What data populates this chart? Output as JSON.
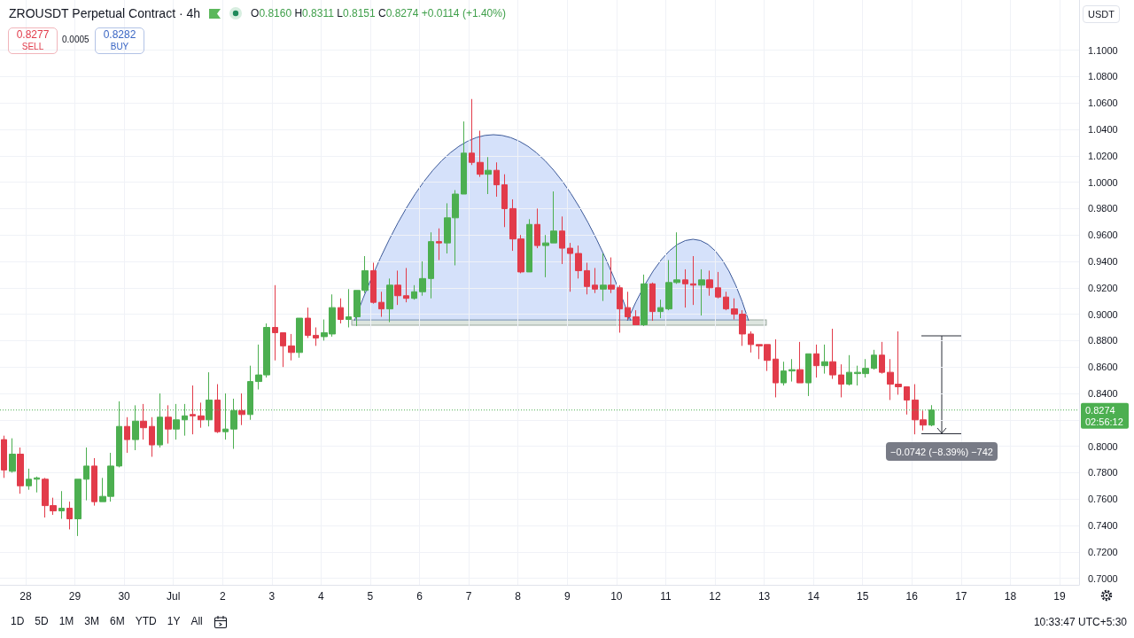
{
  "chart_data": {
    "type": "candlestick",
    "title": "ZROUSDT Perpetual Contract · 4h",
    "ylabel": "USDT",
    "x": [
      "--06-27T13:30",
      "--06-27T17:30",
      "--06-27T21:30",
      "--06-28T01:30",
      "--06-28T05:30",
      "--06-28T09:30",
      "--06-28T13:30",
      "--06-28T17:30",
      "--06-28T21:30",
      "--06-29T01:30",
      "--06-29T05:30",
      "--06-29T09:30",
      "--06-29T13:30",
      "--06-29T17:30",
      "--06-29T21:30",
      "--06-30T01:30",
      "--06-30T05:30",
      "--06-30T09:30",
      "--06-30T13:30",
      "--06-30T17:30",
      "--06-30T21:30",
      "--07-01T01:30",
      "--07-01T05:30",
      "--07-01T09:30",
      "--07-01T13:30",
      "--07-01T17:30",
      "--07-01T21:30",
      "--07-02T01:30",
      "--07-02T05:30",
      "--07-02T09:30",
      "--07-02T13:30",
      "--07-02T17:30",
      "--07-02T21:30",
      "--07-03T01:30",
      "--07-03T05:30",
      "--07-03T09:30",
      "--07-03T13:30",
      "--07-03T17:30",
      "--07-03T21:30",
      "--07-04T01:30",
      "--07-04T05:30",
      "--07-04T09:30",
      "--07-04T13:30",
      "--07-04T17:30",
      "--07-04T21:30",
      "--07-05T01:30",
      "--07-05T05:30",
      "--07-05T09:30",
      "--07-05T13:30",
      "--07-05T17:30",
      "--07-05T21:30",
      "--07-06T01:30",
      "--07-06T05:30",
      "--07-06T09:30",
      "--07-06T13:30",
      "--07-06T17:30",
      "--07-06T21:30",
      "--07-07T01:30",
      "--07-07T05:30",
      "--07-07T09:30",
      "--07-07T13:30",
      "--07-07T17:30",
      "--07-07T21:30",
      "--07-08T01:30",
      "--07-08T05:30",
      "--07-08T09:30",
      "--07-08T13:30",
      "--07-08T17:30",
      "--07-08T21:30",
      "--07-09T01:30",
      "--07-09T05:30",
      "--07-09T09:30",
      "--07-09T13:30",
      "--07-09T17:30",
      "--07-09T21:30",
      "--07-10T01:30",
      "--07-10T05:30",
      "--07-10T09:30",
      "--07-10T13:30",
      "--07-10T17:30",
      "--07-10T21:30",
      "--07-11T01:30",
      "--07-11T05:30",
      "--07-11T09:30",
      "--07-11T13:30",
      "--07-11T17:30",
      "--07-11T21:30",
      "--07-12T01:30",
      "--07-12T05:30",
      "--07-12T09:30",
      "--07-12T13:30",
      "--07-12T17:30",
      "--07-12T21:30",
      "--07-13T01:30",
      "--07-13T05:30",
      "--07-13T09:30",
      "--07-13T13:30",
      "--07-13T17:30",
      "--07-13T21:30",
      "--07-14T01:30",
      "--07-14T05:30",
      "--07-14T09:30",
      "--07-14T13:30",
      "--07-14T17:30",
      "--07-14T21:30",
      "--07-15T01:30",
      "--07-15T05:30",
      "--07-15T09:30",
      "--07-15T13:30",
      "--07-15T17:30",
      "--07-15T21:30",
      "--07-16T01:30",
      "--07-16T05:30",
      "--07-16T09:30"
    ],
    "ohlc": [
      [
        0.805,
        0.808,
        0.776,
        0.782
      ],
      [
        0.781,
        0.806,
        0.78,
        0.794
      ],
      [
        0.794,
        0.799,
        0.764,
        0.77
      ],
      [
        0.77,
        0.783,
        0.767,
        0.775
      ],
      [
        0.775,
        0.777,
        0.765,
        0.776
      ],
      [
        0.775,
        0.776,
        0.746,
        0.755
      ],
      [
        0.755,
        0.761,
        0.748,
        0.751
      ],
      [
        0.751,
        0.766,
        0.745,
        0.753
      ],
      [
        0.753,
        0.758,
        0.737,
        0.745
      ],
      [
        0.745,
        0.775,
        0.732,
        0.775
      ],
      [
        0.775,
        0.799,
        0.759,
        0.785
      ],
      [
        0.785,
        0.791,
        0.755,
        0.758
      ],
      [
        0.758,
        0.776,
        0.758,
        0.762
      ],
      [
        0.762,
        0.795,
        0.758,
        0.785
      ],
      [
        0.785,
        0.834,
        0.784,
        0.815
      ],
      [
        0.815,
        0.822,
        0.795,
        0.805
      ],
      [
        0.805,
        0.831,
        0.797,
        0.819
      ],
      [
        0.819,
        0.832,
        0.805,
        0.814
      ],
      [
        0.815,
        0.822,
        0.792,
        0.801
      ],
      [
        0.801,
        0.84,
        0.799,
        0.822
      ],
      [
        0.822,
        0.831,
        0.802,
        0.813
      ],
      [
        0.813,
        0.832,
        0.805,
        0.82
      ],
      [
        0.82,
        0.832,
        0.808,
        0.823
      ],
      [
        0.824,
        0.846,
        0.809,
        0.823
      ],
      [
        0.823,
        0.833,
        0.814,
        0.82
      ],
      [
        0.82,
        0.856,
        0.815,
        0.835
      ],
      [
        0.835,
        0.847,
        0.81,
        0.811
      ],
      [
        0.811,
        0.84,
        0.805,
        0.813
      ],
      [
        0.813,
        0.836,
        0.798,
        0.827
      ],
      [
        0.827,
        0.84,
        0.816,
        0.824
      ],
      [
        0.824,
        0.861,
        0.82,
        0.849
      ],
      [
        0.849,
        0.877,
        0.843,
        0.854
      ],
      [
        0.854,
        0.893,
        0.852,
        0.89
      ],
      [
        0.89,
        0.922,
        0.865,
        0.886
      ],
      [
        0.886,
        0.886,
        0.86,
        0.876
      ],
      [
        0.876,
        0.885,
        0.865,
        0.871
      ],
      [
        0.871,
        0.897,
        0.867,
        0.897
      ],
      [
        0.897,
        0.905,
        0.882,
        0.884
      ],
      [
        0.884,
        0.89,
        0.876,
        0.882
      ],
      [
        0.883,
        0.896,
        0.88,
        0.886
      ],
      [
        0.885,
        0.915,
        0.883,
        0.905
      ],
      [
        0.905,
        0.912,
        0.893,
        0.896
      ],
      [
        0.896,
        0.919,
        0.89,
        0.898
      ],
      [
        0.898,
        0.918,
        0.891,
        0.918
      ],
      [
        0.918,
        0.944,
        0.916,
        0.933
      ],
      [
        0.933,
        0.939,
        0.908,
        0.909
      ],
      [
        0.909,
        0.917,
        0.898,
        0.904
      ],
      [
        0.904,
        0.927,
        0.894,
        0.922
      ],
      [
        0.922,
        0.933,
        0.907,
        0.914
      ],
      [
        0.914,
        0.935,
        0.909,
        0.912
      ],
      [
        0.912,
        0.922,
        0.911,
        0.917
      ],
      [
        0.917,
        0.94,
        0.914,
        0.927
      ],
      [
        0.927,
        0.962,
        0.912,
        0.955
      ],
      [
        0.955,
        0.965,
        0.941,
        0.954
      ],
      [
        0.954,
        0.984,
        0.946,
        0.973
      ],
      [
        0.973,
        0.994,
        0.937,
        0.991
      ],
      [
        0.991,
        1.046,
        0.991,
        1.022
      ],
      [
        1.022,
        1.063,
        1.013,
        1.015
      ],
      [
        1.015,
        1.039,
        1.004,
        1.006
      ],
      [
        1.006,
        1.019,
        0.991,
        1.009
      ],
      [
        1.009,
        1.015,
        0.989,
        0.998
      ],
      [
        0.998,
        1.006,
        0.966,
        0.98
      ],
      [
        0.98,
        0.987,
        0.948,
        0.957
      ],
      [
        0.957,
        0.96,
        0.931,
        0.932
      ],
      [
        0.932,
        0.972,
        0.932,
        0.968
      ],
      [
        0.968,
        0.98,
        0.95,
        0.952
      ],
      [
        0.952,
        0.96,
        0.928,
        0.954
      ],
      [
        0.954,
        0.993,
        0.954,
        0.963
      ],
      [
        0.963,
        0.974,
        0.938,
        0.95
      ],
      [
        0.95,
        0.954,
        0.917,
        0.946
      ],
      [
        0.946,
        0.952,
        0.927,
        0.933
      ],
      [
        0.933,
        0.939,
        0.915,
        0.921
      ],
      [
        0.922,
        0.935,
        0.916,
        0.919
      ],
      [
        0.919,
        0.946,
        0.91,
        0.922
      ],
      [
        0.922,
        0.943,
        0.916,
        0.919
      ],
      [
        0.92,
        0.922,
        0.886,
        0.904
      ],
      [
        0.905,
        0.917,
        0.896,
        0.898
      ],
      [
        0.898,
        0.903,
        0.892,
        0.892
      ],
      [
        0.892,
        0.93,
        0.891,
        0.923
      ],
      [
        0.923,
        0.924,
        0.895,
        0.902
      ],
      [
        0.902,
        0.911,
        0.897,
        0.905
      ],
      [
        0.904,
        0.941,
        0.903,
        0.924
      ],
      [
        0.924,
        0.962,
        0.923,
        0.926
      ],
      [
        0.926,
        0.934,
        0.905,
        0.923
      ],
      [
        0.923,
        0.944,
        0.907,
        0.922
      ],
      [
        0.922,
        0.934,
        0.899,
        0.926
      ],
      [
        0.926,
        0.933,
        0.914,
        0.92
      ],
      [
        0.92,
        0.932,
        0.912,
        0.913
      ],
      [
        0.913,
        0.917,
        0.903,
        0.904
      ],
      [
        0.904,
        0.912,
        0.896,
        0.9
      ],
      [
        0.9,
        0.903,
        0.876,
        0.885
      ],
      [
        0.885,
        0.887,
        0.871,
        0.877
      ],
      [
        0.877,
        0.877,
        0.866,
        0.876
      ],
      [
        0.877,
        0.877,
        0.857,
        0.865
      ],
      [
        0.866,
        0.881,
        0.837,
        0.848
      ],
      [
        0.848,
        0.864,
        0.846,
        0.857
      ],
      [
        0.857,
        0.866,
        0.849,
        0.858
      ],
      [
        0.858,
        0.879,
        0.848,
        0.848
      ],
      [
        0.848,
        0.87,
        0.838,
        0.87
      ],
      [
        0.87,
        0.877,
        0.852,
        0.861
      ],
      [
        0.861,
        0.877,
        0.855,
        0.864
      ],
      [
        0.864,
        0.889,
        0.851,
        0.854
      ],
      [
        0.854,
        0.862,
        0.837,
        0.847
      ],
      [
        0.847,
        0.869,
        0.846,
        0.856
      ],
      [
        0.855,
        0.861,
        0.846,
        0.856
      ],
      [
        0.855,
        0.866,
        0.852,
        0.859
      ],
      [
        0.859,
        0.873,
        0.858,
        0.869
      ],
      [
        0.869,
        0.879,
        0.855,
        0.856
      ],
      [
        0.856,
        0.866,
        0.835,
        0.847
      ],
      [
        0.847,
        0.887,
        0.839,
        0.845
      ],
      [
        0.845,
        0.845,
        0.824,
        0.835
      ],
      [
        0.835,
        0.847,
        0.809,
        0.82
      ],
      [
        0.82,
        0.827,
        0.812,
        0.816
      ],
      [
        0.816,
        0.8311,
        0.8151,
        0.8274
      ]
    ],
    "colors": [
      "#e23b4a",
      "#4caf50",
      "#e23b4a",
      "#4caf50",
      "#4caf50",
      "#e23b4a",
      "#e23b4a",
      "#4caf50",
      "#e23b4a",
      "#4caf50",
      "#4caf50",
      "#e23b4a",
      "#4caf50",
      "#4caf50",
      "#4caf50",
      "#e23b4a",
      "#4caf50",
      "#e23b4a",
      "#e23b4a",
      "#4caf50",
      "#e23b4a",
      "#4caf50",
      "#4caf50",
      "#e23b4a",
      "#e23b4a",
      "#4caf50",
      "#e23b4a",
      "#4caf50",
      "#4caf50",
      "#e23b4a",
      "#4caf50",
      "#4caf50",
      "#4caf50",
      "#e23b4a",
      "#e23b4a",
      "#e23b4a",
      "#4caf50",
      "#e23b4a",
      "#e23b4a",
      "#4caf50",
      "#4caf50",
      "#e23b4a",
      "#4caf50",
      "#4caf50",
      "#4caf50",
      "#e23b4a",
      "#e23b4a",
      "#4caf50",
      "#e23b4a",
      "#e23b4a",
      "#4caf50",
      "#4caf50",
      "#4caf50",
      "#e23b4a",
      "#4caf50",
      "#4caf50",
      "#4caf50",
      "#e23b4a",
      "#e23b4a",
      "#4caf50",
      "#e23b4a",
      "#e23b4a",
      "#e23b4a",
      "#e23b4a",
      "#4caf50",
      "#e23b4a",
      "#4caf50",
      "#4caf50",
      "#e23b4a",
      "#e23b4a",
      "#e23b4a",
      "#e23b4a",
      "#e23b4a",
      "#4caf50",
      "#e23b4a",
      "#e23b4a",
      "#e23b4a",
      "#e23b4a",
      "#4caf50",
      "#e23b4a",
      "#4caf50",
      "#4caf50",
      "#4caf50",
      "#e23b4a",
      "#e23b4a",
      "#4caf50",
      "#e23b4a",
      "#e23b4a",
      "#e23b4a",
      "#e23b4a",
      "#e23b4a",
      "#e23b4a",
      "#e23b4a",
      "#e23b4a",
      "#e23b4a",
      "#4caf50",
      "#4caf50",
      "#e23b4a",
      "#4caf50",
      "#e23b4a",
      "#4caf50",
      "#e23b4a",
      "#e23b4a",
      "#4caf50",
      "#4caf50",
      "#4caf50",
      "#4caf50",
      "#e23b4a",
      "#e23b4a",
      "#e23b4a",
      "#e23b4a",
      "#e23b4a",
      "#e23b4a",
      "#4caf50"
    ],
    "xlim": [
      "--06-27T11:30",
      "--07-19T09:30"
    ],
    "xticks": [
      {
        "value": "--06-28",
        "label": "28"
      },
      {
        "value": "--06-29",
        "label": "29"
      },
      {
        "value": "--06-30",
        "label": "30"
      },
      {
        "value": "--07-01",
        "label": "Jul"
      },
      {
        "value": "--07-02",
        "label": "2"
      },
      {
        "value": "--07-03",
        "label": "3"
      },
      {
        "value": "--07-04",
        "label": "4"
      },
      {
        "value": "--07-05",
        "label": "5"
      },
      {
        "value": "--07-06",
        "label": "6"
      },
      {
        "value": "--07-07",
        "label": "7"
      },
      {
        "value": "--07-08",
        "label": "8"
      },
      {
        "value": "--07-09",
        "label": "9"
      },
      {
        "value": "--07-10",
        "label": "10"
      },
      {
        "value": "--07-11",
        "label": "11"
      },
      {
        "value": "--07-12",
        "label": "12"
      },
      {
        "value": "--07-13",
        "label": "13"
      },
      {
        "value": "--07-14",
        "label": "14"
      },
      {
        "value": "--07-15",
        "label": "15"
      },
      {
        "value": "--07-16",
        "label": "16"
      },
      {
        "value": "--07-17",
        "label": "17"
      },
      {
        "value": "--07-18",
        "label": "18"
      },
      {
        "value": "--07-19",
        "label": "19"
      }
    ],
    "ylim": [
      0.695,
      1.138
    ],
    "yticks": [
      {
        "value": 0.7,
        "label": "0.7000"
      },
      {
        "value": 0.72,
        "label": "0.7200"
      },
      {
        "value": 0.74,
        "label": "0.7400"
      },
      {
        "value": 0.76,
        "label": "0.7600"
      },
      {
        "value": 0.78,
        "label": "0.7800"
      },
      {
        "value": 0.8,
        "label": "0.8000"
      },
      {
        "value": 0.82,
        "label": null
      },
      {
        "value": 0.84,
        "label": "0.8400"
      },
      {
        "value": 0.86,
        "label": "0.8600"
      },
      {
        "value": 0.88,
        "label": "0.8800"
      },
      {
        "value": 0.9,
        "label": "0.9000"
      },
      {
        "value": 0.92,
        "label": "0.9200"
      },
      {
        "value": 0.94,
        "label": "0.9400"
      },
      {
        "value": 0.96,
        "label": "0.9600"
      },
      {
        "value": 0.98,
        "label": "0.9800"
      },
      {
        "value": 1.0,
        "label": "1.0000"
      },
      {
        "value": 1.02,
        "label": "1.0200"
      },
      {
        "value": 1.04,
        "label": "1.0400"
      },
      {
        "value": 1.06,
        "label": "1.0600"
      },
      {
        "value": 1.08,
        "label": "1.0800"
      },
      {
        "value": 1.1,
        "label": "1.1000"
      }
    ],
    "grid": true,
    "ref_lines": [
      {
        "axis": "y",
        "value": 0.8274,
        "label": "0.8274",
        "color": "#4caf50",
        "line_style": "dotted"
      }
    ],
    "annotations": [
      "O0.8160 H0.8311 L0.8151 C0.8274 +0.0114 (+1.40%)",
      "0.8277",
      "SELL",
      "0.0005",
      "0.8282",
      "BUY",
      "02:56:12",
      "−0.0742 (−8.39%) −742",
      "1D",
      "5D",
      "1M",
      "3M",
      "6M",
      "YTD",
      "1Y",
      "All",
      "10:33:47 UTC+5:30"
    ]
  }
}
